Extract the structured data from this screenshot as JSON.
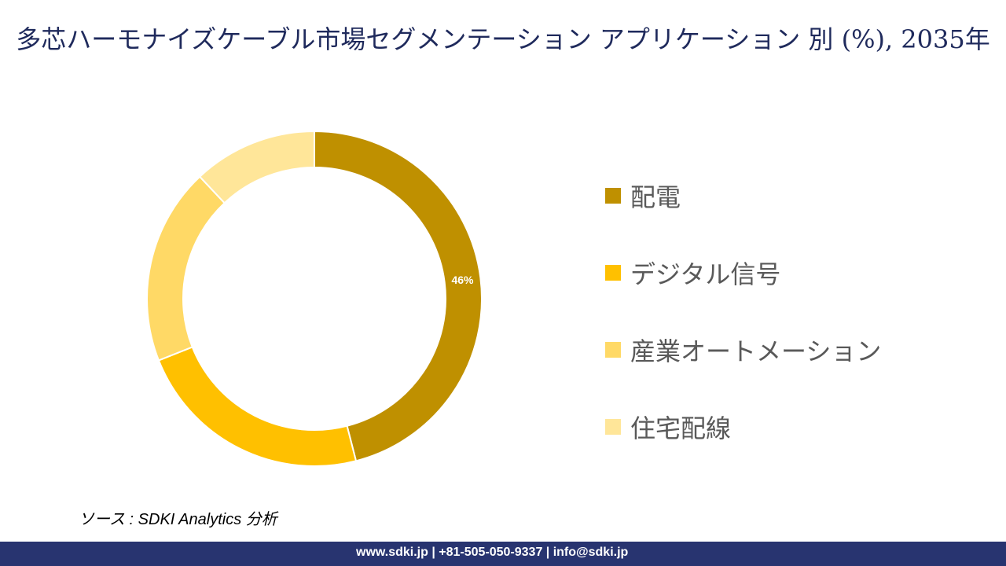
{
  "title": "多芯ハーモナイズケーブル市場セグメンテーション アプリケーション 別 (%), 2035年",
  "chart_data": {
    "type": "donut",
    "title": "多芯ハーモナイズケーブル市場セグメンテーション アプリケーション 別 (%), 2035年",
    "categories": [
      "配電",
      "デジタル信号",
      "産業オートメーション",
      "住宅配線"
    ],
    "values": [
      46,
      23,
      19,
      12
    ],
    "data_labels": [
      "46%",
      "",
      "",
      ""
    ],
    "colors": [
      "#BF9000",
      "#FFC000",
      "#FFD966",
      "#FFE699"
    ],
    "legend_position": "right"
  },
  "source": "ソース : SDKI Analytics 分析",
  "footer": "www.sdki.jp | +81-505-050-9337 | info@sdki.jp"
}
